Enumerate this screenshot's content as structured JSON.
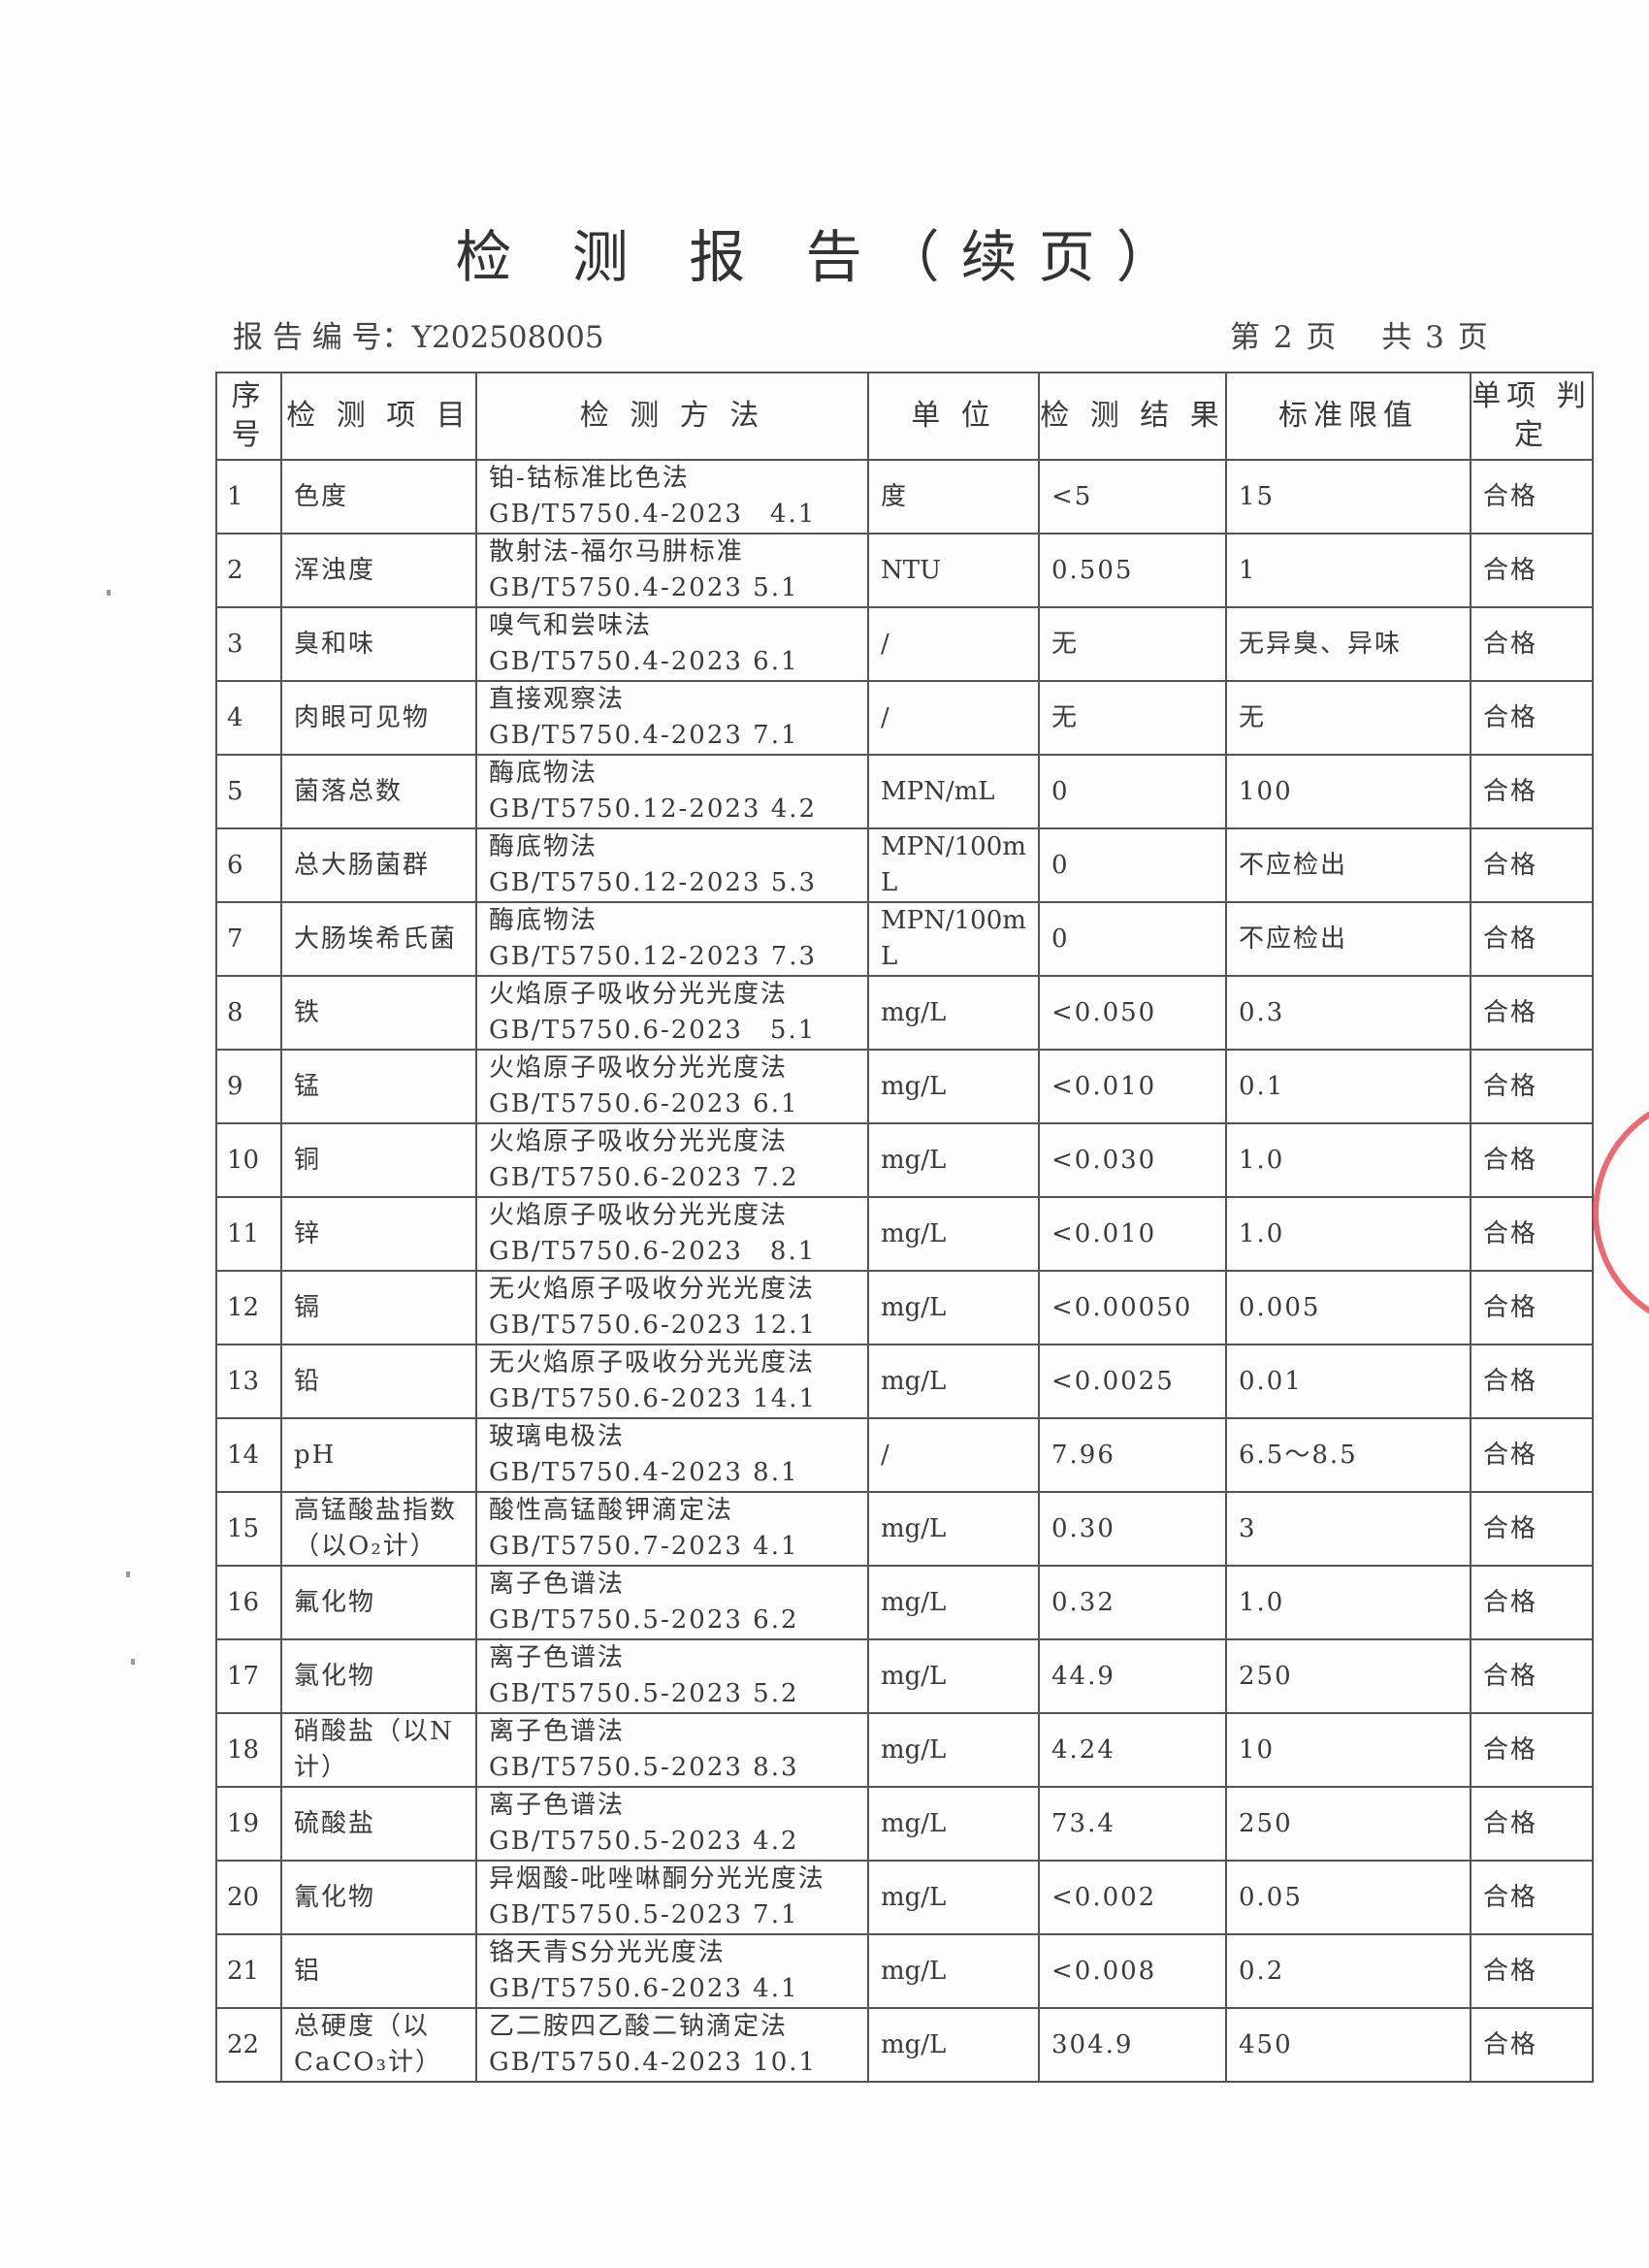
{
  "title": "检 测 报 告（续页）",
  "report_no_label": "报 告 编 号：",
  "report_no": "Y202508005",
  "page_info": "第 2 页　  共 3 页",
  "stamp_color": "#e8434f",
  "columns": [
    "序号",
    "检 测 项 目",
    "检 测 方 法",
    "单 位",
    "检 测 结 果",
    "标准限值",
    "单项 判定"
  ],
  "rows": [
    [
      "1",
      "色度",
      "铂-钴标准比色法",
      "GB/T5750.4-2023　4.1",
      "度",
      "<5",
      "15",
      "合格"
    ],
    [
      "2",
      "浑浊度",
      "散射法-福尔马肼标准",
      "GB/T5750.4-2023 5.1",
      "NTU",
      "0.505",
      "1",
      "合格"
    ],
    [
      "3",
      "臭和味",
      "嗅气和尝味法",
      "GB/T5750.4-2023 6.1",
      "/",
      "无",
      "无异臭、异味",
      "合格"
    ],
    [
      "4",
      "肉眼可见物",
      "直接观察法",
      "GB/T5750.4-2023 7.1",
      "/",
      "无",
      "无",
      "合格"
    ],
    [
      "5",
      "菌落总数",
      "酶底物法",
      "GB/T5750.12-2023 4.2",
      "MPN/mL",
      "0",
      "100",
      "合格"
    ],
    [
      "6",
      "总大肠菌群",
      "酶底物法",
      "GB/T5750.12-2023 5.3",
      "MPN/100mL",
      "0",
      "不应检出",
      "合格"
    ],
    [
      "7",
      "大肠埃希氏菌",
      "酶底物法",
      "GB/T5750.12-2023 7.3",
      "MPN/100mL",
      "0",
      "不应检出",
      "合格"
    ],
    [
      "8",
      "铁",
      "火焰原子吸收分光光度法",
      "GB/T5750.6-2023　5.1",
      "mg/L",
      "<0.050",
      "0.3",
      "合格"
    ],
    [
      "9",
      "锰",
      "火焰原子吸收分光光度法",
      "GB/T5750.6-2023 6.1",
      "mg/L",
      "<0.010",
      "0.1",
      "合格"
    ],
    [
      "10",
      "铜",
      "火焰原子吸收分光光度法",
      "GB/T5750.6-2023 7.2",
      "mg/L",
      "<0.030",
      "1.0",
      "合格"
    ],
    [
      "11",
      "锌",
      "火焰原子吸收分光光度法",
      "GB/T5750.6-2023　8.1",
      "mg/L",
      "<0.010",
      "1.0",
      "合格"
    ],
    [
      "12",
      "镉",
      "无火焰原子吸收分光光度法",
      "GB/T5750.6-2023 12.1",
      "mg/L",
      "<0.00050",
      "0.005",
      "合格"
    ],
    [
      "13",
      "铅",
      "无火焰原子吸收分光光度法",
      "GB/T5750.6-2023 14.1",
      "mg/L",
      "<0.0025",
      "0.01",
      "合格"
    ],
    [
      "14",
      "pH",
      "玻璃电极法",
      "GB/T5750.4-2023 8.1",
      "/",
      "7.96",
      "6.5～8.5",
      "合格"
    ],
    [
      "15",
      "高锰酸盐指数（以O₂计）",
      "酸性高锰酸钾滴定法",
      "GB/T5750.7-2023 4.1",
      "mg/L",
      "0.30",
      "3",
      "合格"
    ],
    [
      "16",
      "氟化物",
      "离子色谱法",
      "GB/T5750.5-2023 6.2",
      "mg/L",
      "0.32",
      "1.0",
      "合格"
    ],
    [
      "17",
      "氯化物",
      "离子色谱法",
      "GB/T5750.5-2023 5.2",
      "mg/L",
      "44.9",
      "250",
      "合格"
    ],
    [
      "18",
      "硝酸盐（以N计）",
      "离子色谱法",
      "GB/T5750.5-2023 8.3",
      "mg/L",
      "4.24",
      "10",
      "合格"
    ],
    [
      "19",
      "硫酸盐",
      "离子色谱法",
      "GB/T5750.5-2023 4.2",
      "mg/L",
      "73.4",
      "250",
      "合格"
    ],
    [
      "20",
      "氰化物",
      "异烟酸-吡唑啉酮分光光度法",
      "GB/T5750.5-2023 7.1",
      "mg/L",
      "<0.002",
      "0.05",
      "合格"
    ],
    [
      "21",
      "铝",
      "铬天青S分光光度法",
      "GB/T5750.6-2023 4.1",
      "mg/L",
      "<0.008",
      "0.2",
      "合格"
    ],
    [
      "22",
      "总硬度（以CaCO₃计）",
      "乙二胺四乙酸二钠滴定法",
      "GB/T5750.4-2023 10.1",
      "mg/L",
      "304.9",
      "450",
      "合格"
    ]
  ]
}
